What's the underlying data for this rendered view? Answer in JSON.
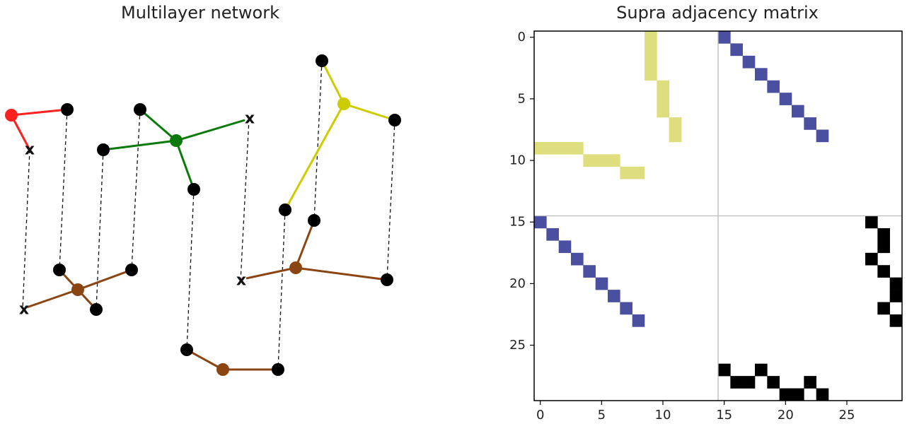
{
  "left_panel": {
    "title": "Multilayer network",
    "node_marker_missing": "x",
    "colors": {
      "red": "#ff2020",
      "green": "#0a7a0a",
      "yellow": "#cccc00",
      "brown": "#8b4513",
      "node": "#000000",
      "interlayer": "#111111"
    }
  },
  "right_panel": {
    "title": "Supra adjacency matrix",
    "colors": {
      "yellow": "#dede7e",
      "blue": "#4b4f9f",
      "black": "#000000",
      "separator": "#bbbbbb"
    },
    "y_ticks": [
      "0",
      "5",
      "10",
      "15",
      "20",
      "25"
    ],
    "x_ticks": [
      "0",
      "5",
      "10",
      "15",
      "20",
      "25"
    ]
  },
  "chart_data": {
    "type": "heatmap",
    "title": "Supra adjacency matrix",
    "size": 30,
    "xlim": [
      -0.5,
      29.5
    ],
    "ylim": [
      29.5,
      -0.5
    ],
    "block_separator_index": 15,
    "y_ticks": [
      0,
      5,
      10,
      15,
      20,
      25
    ],
    "x_ticks": [
      0,
      5,
      10,
      15,
      20,
      25
    ],
    "cells": [
      {
        "group": "yellow",
        "coords": [
          [
            0,
            9
          ],
          [
            1,
            9
          ],
          [
            2,
            9
          ],
          [
            3,
            9
          ],
          [
            4,
            10
          ],
          [
            5,
            10
          ],
          [
            6,
            10
          ],
          [
            7,
            11
          ],
          [
            8,
            11
          ],
          [
            9,
            0
          ],
          [
            9,
            1
          ],
          [
            9,
            2
          ],
          [
            9,
            3
          ],
          [
            10,
            4
          ],
          [
            10,
            5
          ],
          [
            10,
            6
          ],
          [
            11,
            7
          ],
          [
            11,
            8
          ]
        ]
      },
      {
        "group": "blue",
        "coords": [
          [
            0,
            15
          ],
          [
            1,
            16
          ],
          [
            2,
            17
          ],
          [
            3,
            18
          ],
          [
            4,
            19
          ],
          [
            5,
            20
          ],
          [
            6,
            21
          ],
          [
            7,
            22
          ],
          [
            8,
            23
          ],
          [
            15,
            0
          ],
          [
            16,
            1
          ],
          [
            17,
            2
          ],
          [
            18,
            3
          ],
          [
            19,
            4
          ],
          [
            20,
            5
          ],
          [
            21,
            6
          ],
          [
            22,
            7
          ],
          [
            23,
            8
          ]
        ]
      },
      {
        "group": "black",
        "coords": [
          [
            15,
            27
          ],
          [
            16,
            28
          ],
          [
            17,
            28
          ],
          [
            18,
            27
          ],
          [
            19,
            28
          ],
          [
            20,
            29
          ],
          [
            21,
            29
          ],
          [
            22,
            28
          ],
          [
            23,
            29
          ],
          [
            27,
            15
          ],
          [
            28,
            16
          ],
          [
            28,
            17
          ],
          [
            27,
            18
          ],
          [
            28,
            19
          ],
          [
            29,
            20
          ],
          [
            29,
            21
          ],
          [
            28,
            22
          ],
          [
            29,
            23
          ]
        ]
      }
    ]
  }
}
